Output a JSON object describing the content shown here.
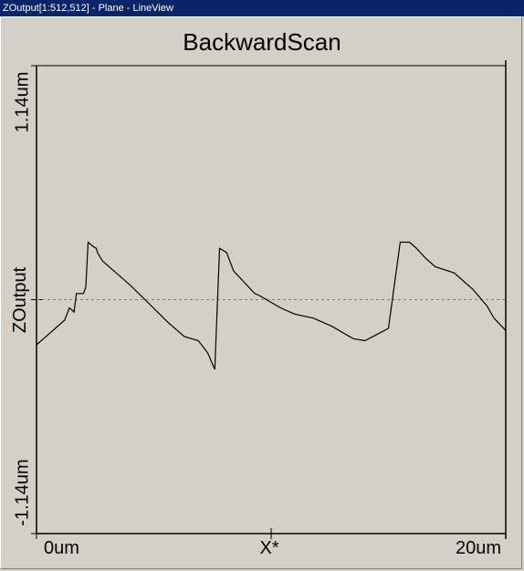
{
  "window": {
    "title": "ZOutput[1:512,512] - Plane - LineView"
  },
  "colors": {
    "titlebar": "#0a246a",
    "background": "#d4d0c8",
    "line": "#000000",
    "zero_line": "#808080"
  },
  "chart_data": {
    "type": "line",
    "title": "BackwardScan",
    "xlabel": "X*",
    "ylabel": "ZOutput",
    "x_tick_labels": [
      "0um",
      "20um"
    ],
    "y_tick_labels": [
      "1.14um",
      "-1.14um"
    ],
    "xlim": [
      0,
      20
    ],
    "ylim": [
      -1.14,
      1.14
    ],
    "x_unit": "um",
    "y_unit": "um",
    "zero_line": "dashed",
    "series": [
      {
        "values_x": [
          0,
          0.3,
          0.8,
          1.2,
          1.4,
          1.6,
          1.7,
          2.0,
          2.1,
          2.2,
          2.4,
          2.55,
          2.6,
          2.8,
          3.2,
          4.0,
          4.8,
          5.6,
          6.3,
          6.9,
          7.3,
          7.6,
          7.8,
          8.1,
          8.4,
          9.3,
          9.5,
          9.8,
          10.4,
          11.0,
          11.8,
          12.6,
          13.5,
          14.0,
          14.5,
          15.0,
          15.5,
          15.9,
          16.2,
          16.6,
          17.0,
          17.8,
          18.6,
          19.2,
          19.5,
          20.0
        ],
        "values_y": [
          -0.22,
          -0.19,
          -0.14,
          -0.1,
          -0.04,
          -0.06,
          0.03,
          0.03,
          0.06,
          0.28,
          0.26,
          0.25,
          0.23,
          0.19,
          0.15,
          0.07,
          -0.02,
          -0.11,
          -0.18,
          -0.2,
          -0.26,
          -0.34,
          0.25,
          0.23,
          0.14,
          0.03,
          0.02,
          0.0,
          -0.04,
          -0.07,
          -0.09,
          -0.13,
          -0.19,
          -0.2,
          -0.17,
          -0.14,
          0.28,
          0.28,
          0.25,
          0.2,
          0.16,
          0.13,
          0.05,
          -0.03,
          -0.09,
          -0.15
        ]
      }
    ]
  }
}
